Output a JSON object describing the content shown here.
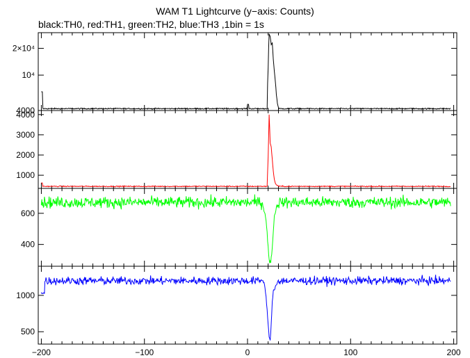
{
  "title": "WAM T1 Lightcurve (y−axis: Counts)",
  "subtitle": "black:TH0, red:TH1, green:TH2, blue:TH3 ,1bin = 1s",
  "chart_data": {
    "type": "line",
    "xlim": [
      -203,
      203
    ],
    "x_ticks": [
      -200,
      -100,
      0,
      100,
      200
    ],
    "x_tick_labels": [
      "−200",
      "−100",
      "0",
      "100",
      "200"
    ],
    "panels": [
      {
        "name": "TH0",
        "color": "#000000",
        "scale": "log",
        "ylim": [
          4000,
          30000
        ],
        "y_ticks": [
          {
            "value": 20000,
            "label": "2×10⁴"
          },
          {
            "value": 10000,
            "label": "10⁴"
          },
          {
            "value": 4000,
            "label": "4000"
          }
        ],
        "baseline": 4200,
        "noise": 45,
        "features": [
          {
            "type": "spike",
            "x0": -200,
            "x1": -199,
            "value": 6500
          },
          {
            "type": "spike",
            "x0": 0,
            "x1": 1,
            "value": 4700
          },
          {
            "type": "burst",
            "points": [
              [
                19,
                4200
              ],
              [
                20,
                12000
              ],
              [
                21,
                29000
              ],
              [
                22,
                27000
              ],
              [
                23,
                22000
              ],
              [
                24,
                23000
              ],
              [
                25,
                15000
              ],
              [
                26,
                11000
              ],
              [
                27,
                8500
              ],
              [
                28,
                6000
              ],
              [
                29,
                4800
              ],
              [
                30,
                4300
              ]
            ]
          }
        ]
      },
      {
        "name": "TH1",
        "color": "#ff0000",
        "scale": "linear",
        "ylim": [
          350,
          4200
        ],
        "y_ticks": [
          {
            "value": 1000,
            "label": "1000"
          },
          {
            "value": 2000,
            "label": "2000"
          },
          {
            "value": 3000,
            "label": "3000"
          },
          {
            "value": 4000,
            "label": "4000"
          }
        ],
        "baseline": 450,
        "noise": 18,
        "features": [
          {
            "type": "spike",
            "x0": -200,
            "x1": -199,
            "value": 620
          },
          {
            "type": "burst",
            "points": [
              [
                19,
                460
              ],
              [
                20,
                1900
              ],
              [
                21,
                4000
              ],
              [
                22,
                2600
              ],
              [
                23,
                2400
              ],
              [
                24,
                1800
              ],
              [
                25,
                1200
              ],
              [
                26,
                800
              ],
              [
                27,
                600
              ],
              [
                28,
                520
              ],
              [
                30,
                470
              ]
            ]
          }
        ]
      },
      {
        "name": "TH2",
        "color": "#00ff00",
        "scale": "linear",
        "ylim": [
          260,
          760
        ],
        "y_ticks": [
          {
            "value": 400,
            "label": "400"
          },
          {
            "value": 600,
            "label": "600"
          }
        ],
        "baseline": 670,
        "noise": 26,
        "features": [
          {
            "type": "burst",
            "points": [
              [
                15,
                650
              ],
              [
                17,
                600
              ],
              [
                18,
                560
              ],
              [
                19,
                470
              ],
              [
                20,
                380
              ],
              [
                21,
                300
              ],
              [
                22,
                280
              ],
              [
                23,
                310
              ],
              [
                24,
                380
              ],
              [
                25,
                480
              ],
              [
                26,
                580
              ],
              [
                28,
                640
              ],
              [
                30,
                660
              ]
            ]
          }
        ]
      },
      {
        "name": "TH3",
        "color": "#0000ff",
        "scale": "linear",
        "ylim": [
          330,
          1400
        ],
        "y_ticks": [
          {
            "value": 500,
            "label": "500"
          },
          {
            "value": 1000,
            "label": "1000"
          }
        ],
        "baseline": 1200,
        "noise": 40,
        "features": [
          {
            "type": "spike",
            "x0": -200,
            "x1": -197,
            "value": 1030
          },
          {
            "type": "burst",
            "points": [
              [
                14,
                1220
              ],
              [
                16,
                1180
              ],
              [
                17,
                1100
              ],
              [
                18,
                1000
              ],
              [
                19,
                800
              ],
              [
                20,
                600
              ],
              [
                21,
                420
              ],
              [
                22,
                380
              ],
              [
                23,
                600
              ],
              [
                24,
                900
              ],
              [
                25,
                1050
              ],
              [
                27,
                1120
              ],
              [
                29,
                1180
              ]
            ]
          }
        ]
      }
    ]
  }
}
